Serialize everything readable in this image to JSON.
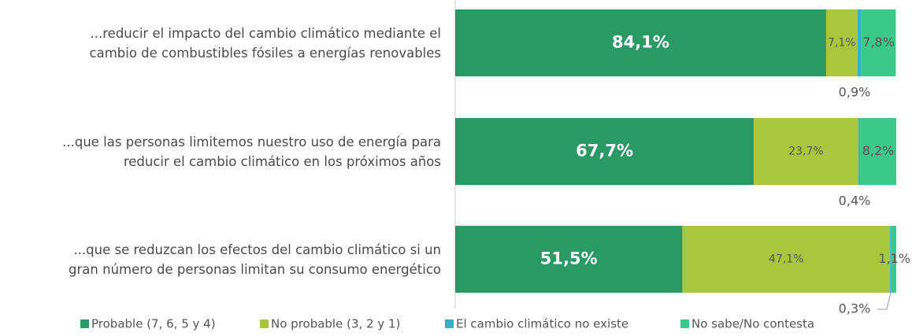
{
  "chart_data": {
    "type": "stacked_bar_horizontal",
    "categories": [
      "...reducir el impacto del cambio climático mediante el\ncambio de combustibles fósiles a energías renovables",
      "...que las personas limitemos nuestro uso de energía para\nreducir el cambio climático en los próximos años",
      "...que se reduzcan los efectos del cambio climático si un\ngran número de personas limitan su consumo energético"
    ],
    "series": [
      {
        "name": "Probable (7, 6, 5 y 4)",
        "color": "#2a9966",
        "values": [
          84.1,
          67.7,
          51.5
        ],
        "value_labels": [
          "84,1%",
          "67,7%",
          "51,5%"
        ]
      },
      {
        "name": "No probable (3, 2 y 1)",
        "color": "#a9c63e",
        "values": [
          7.1,
          23.7,
          47.1
        ],
        "value_labels": [
          "7,1%",
          "23,7%",
          "47,1%"
        ]
      },
      {
        "name": "El cambio climático no existe",
        "color": "#3aaec4",
        "values": [
          0.9,
          0.4,
          0.3
        ],
        "value_labels": [
          "0,9%",
          "0,4%",
          "0,3%"
        ]
      },
      {
        "name": "No sabe/No contesta",
        "color": "#3cc88a",
        "values": [
          7.8,
          8.2,
          1.1
        ],
        "value_labels": [
          "7,8%",
          "8,2%",
          "1,1%"
        ]
      }
    ],
    "xlim": [
      0,
      100
    ]
  }
}
